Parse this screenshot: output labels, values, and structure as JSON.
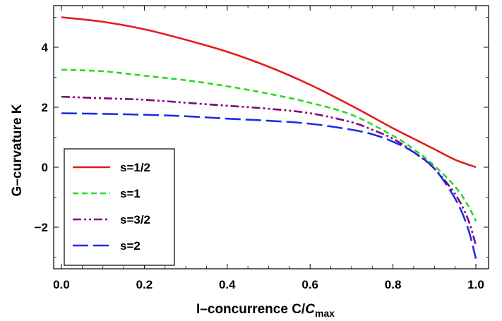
{
  "chart_data": {
    "type": "line",
    "xlabel_main": "I–concurrence C/",
    "xlabel_sym": "C",
    "xlabel_sub": "max",
    "ylabel": "G–curvature K",
    "xlim": [
      0.0,
      1.0
    ],
    "ylim": [
      -3.5,
      5.45
    ],
    "xticks": [
      0.0,
      0.2,
      0.4,
      0.6,
      0.8,
      1.0
    ],
    "xtick_labels": [
      "0.0",
      "0.2",
      "0.4",
      "0.6",
      "0.8",
      "1.0"
    ],
    "yticks": [
      -2,
      0,
      2,
      4
    ],
    "ytick_labels": [
      "−2",
      "0",
      "2",
      "4"
    ],
    "grid": false,
    "legend_position": "bottom-left",
    "series": [
      {
        "name": "s=1/2",
        "color": "#e41a1c",
        "dash": "solid",
        "x": [
          0.0,
          0.1,
          0.2,
          0.3,
          0.4,
          0.5,
          0.6,
          0.7,
          0.8,
          0.85,
          0.9,
          0.95,
          1.0
        ],
        "y": [
          5.0,
          4.85,
          4.6,
          4.25,
          3.85,
          3.35,
          2.75,
          2.05,
          1.3,
          0.95,
          0.6,
          0.25,
          0.0
        ]
      },
      {
        "name": "s=1",
        "color": "#22dd22",
        "dash": "8,5",
        "x": [
          0.0,
          0.1,
          0.2,
          0.3,
          0.4,
          0.5,
          0.6,
          0.7,
          0.8,
          0.85,
          0.9,
          0.95,
          0.98,
          1.0
        ],
        "y": [
          3.25,
          3.2,
          3.05,
          2.9,
          2.7,
          2.45,
          2.15,
          1.75,
          1.05,
          0.6,
          0.05,
          -0.65,
          -1.25,
          -1.8
        ]
      },
      {
        "name": "s=3/2",
        "color": "#800080",
        "dash": "12,4,3,4,3,4",
        "x": [
          0.0,
          0.1,
          0.2,
          0.3,
          0.4,
          0.5,
          0.6,
          0.7,
          0.75,
          0.8,
          0.85,
          0.9,
          0.95,
          0.98,
          1.0
        ],
        "y": [
          2.35,
          2.3,
          2.25,
          2.15,
          2.05,
          1.95,
          1.8,
          1.5,
          1.25,
          0.95,
          0.5,
          -0.05,
          -0.9,
          -1.7,
          -2.6
        ]
      },
      {
        "name": "s=2",
        "color": "#1e2be6",
        "dash": "22,7",
        "x": [
          0.0,
          0.1,
          0.2,
          0.3,
          0.4,
          0.5,
          0.6,
          0.7,
          0.75,
          0.8,
          0.85,
          0.9,
          0.95,
          0.98,
          1.0
        ],
        "y": [
          1.8,
          1.78,
          1.75,
          1.7,
          1.62,
          1.55,
          1.45,
          1.25,
          1.1,
          0.85,
          0.5,
          -0.05,
          -1.05,
          -2.0,
          -3.05
        ]
      }
    ]
  }
}
